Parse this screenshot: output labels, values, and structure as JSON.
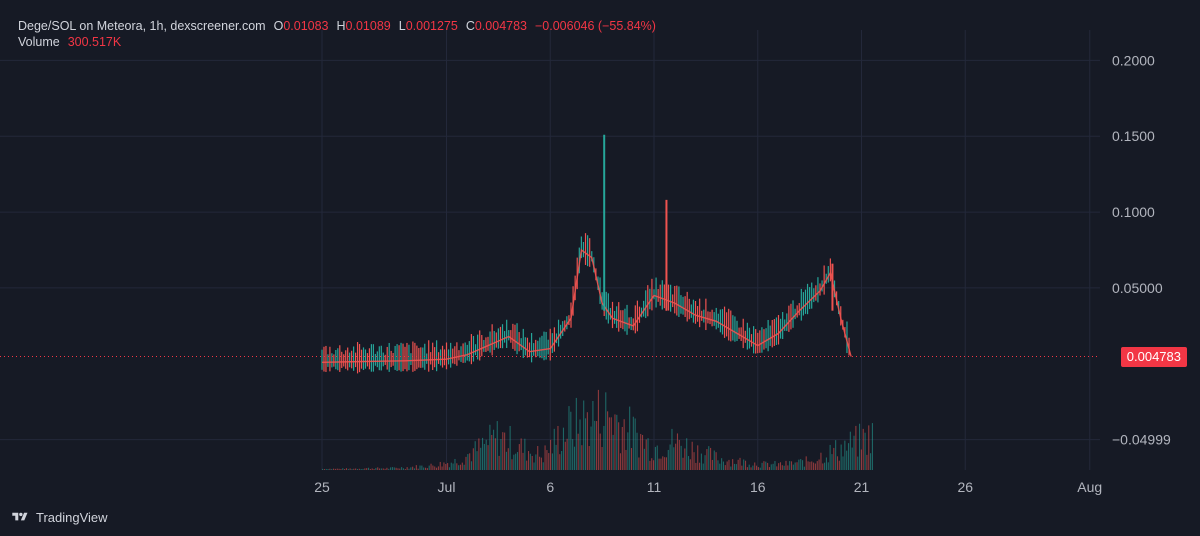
{
  "header": {
    "symbol": "Dege/SOL on Meteora, 1h, dexscreener.com",
    "o_label": "O",
    "o_value": "0.01083",
    "h_label": "H",
    "h_value": "0.01089",
    "l_label": "L",
    "l_value": "0.001275",
    "c_label": "C",
    "c_value": "0.004783",
    "change": "−0.006046 (−55.84%)",
    "volume_label": "Volume",
    "volume_value": "300.517K"
  },
  "footer": {
    "brand": "TradingView"
  },
  "colors": {
    "background": "#161a25",
    "grid": "#23283a",
    "up": "#26a69a",
    "down": "#ef5350",
    "price_line": "#f23645"
  },
  "chart_data": {
    "type": "line",
    "title": "Dege/SOL on Meteora, 1h, dexscreener.com",
    "xlabel": "",
    "ylabel": "",
    "grid": true,
    "x_ticks": [
      "25",
      "Jul",
      "6",
      "11",
      "16",
      "21",
      "26",
      "Aug"
    ],
    "y_ticks": [
      "0.2000",
      "0.1500",
      "0.1000",
      "0.05000",
      "−0.04999"
    ],
    "ylim": [
      -0.07,
      0.22
    ],
    "last_price": "0.004783",
    "series": [
      {
        "x": [
          "Jun 25",
          "Jun 27",
          "Jun 29",
          "Jul 1",
          "Jul 2",
          "Jul 3",
          "Jul 4",
          "Jul 5",
          "Jul 6",
          "Jul 7",
          "Jul 7.5",
          "Jul 8",
          "Jul 8.5",
          "Jul 9",
          "Jul 10",
          "Jul 11",
          "Jul 12",
          "Jul 13",
          "Jul 14",
          "Jul 15",
          "Jul 16",
          "Jul 17",
          "Jul 18",
          "Jul 19",
          "Jul 19.5",
          "Jul 20",
          "Jul 20.5"
        ],
        "values": [
          0.001,
          0.0015,
          0.002,
          0.003,
          0.006,
          0.012,
          0.018,
          0.008,
          0.01,
          0.03,
          0.075,
          0.07,
          0.04,
          0.03,
          0.025,
          0.045,
          0.04,
          0.032,
          0.028,
          0.02,
          0.012,
          0.02,
          0.035,
          0.048,
          0.06,
          0.03,
          0.0048
        ]
      }
    ],
    "wicks": [
      {
        "x": "Jul 8.6",
        "high": 0.151
      },
      {
        "x": "Jul 11.6",
        "high": 0.108
      },
      {
        "x": "Jul 19.6",
        "high": 0.066
      }
    ],
    "volume": {
      "last": "300.517K",
      "bars": [
        0.02,
        0.02,
        0.03,
        0.03,
        0.05,
        0.08,
        0.15,
        0.35,
        0.6,
        0.4,
        0.25,
        0.7,
        0.9,
        1.0,
        0.7,
        0.4,
        0.5,
        0.35,
        0.2,
        0.15,
        0.1,
        0.1,
        0.15,
        0.3,
        0.45,
        0.6
      ]
    }
  }
}
